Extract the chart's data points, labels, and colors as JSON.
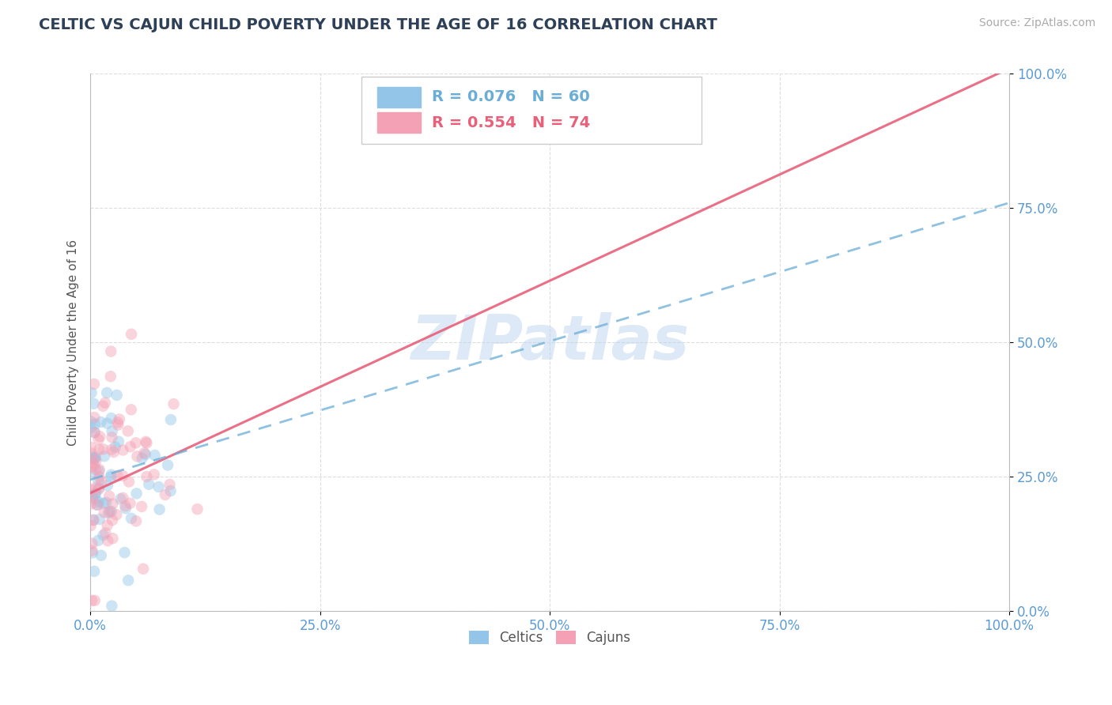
{
  "title": "CELTIC VS CAJUN CHILD POVERTY UNDER THE AGE OF 16 CORRELATION CHART",
  "source": "Source: ZipAtlas.com",
  "ylabel": "Child Poverty Under the Age of 16",
  "watermark": "ZIPatlas",
  "legend_celtics": "Celtics",
  "legend_cajuns": "Cajuns",
  "R_celtics": 0.076,
  "N_celtics": 60,
  "R_cajuns": 0.554,
  "N_cajuns": 74,
  "celtic_color": "#92C5E8",
  "cajun_color": "#F4A0B5",
  "celtic_line_color": "#6AAED6",
  "cajun_line_color": "#E8607A",
  "xlim": [
    0,
    1
  ],
  "ylim": [
    0,
    1
  ],
  "xticks": [
    0.0,
    0.25,
    0.5,
    0.75,
    1.0
  ],
  "yticks": [
    0.0,
    0.25,
    0.5,
    0.75,
    1.0
  ],
  "xtick_labels": [
    "0.0%",
    "25.0%",
    "50.0%",
    "75.0%",
    "100.0%"
  ],
  "ytick_labels": [
    "0.0%",
    "25.0%",
    "50.0%",
    "75.0%",
    "100.0%"
  ],
  "cajun_line_x0": 0.0,
  "cajun_line_y0": 0.22,
  "cajun_line_x1": 1.0,
  "cajun_line_y1": 1.01,
  "celtic_line_x0": 0.0,
  "celtic_line_y0": 0.245,
  "celtic_line_x1": 1.0,
  "celtic_line_y1": 0.76,
  "background_color": "#FFFFFF",
  "grid_color": "#DDDDDD",
  "title_color": "#2E4057",
  "axis_color": "#5B9BD5",
  "marker_size": 110,
  "marker_alpha": 0.45
}
